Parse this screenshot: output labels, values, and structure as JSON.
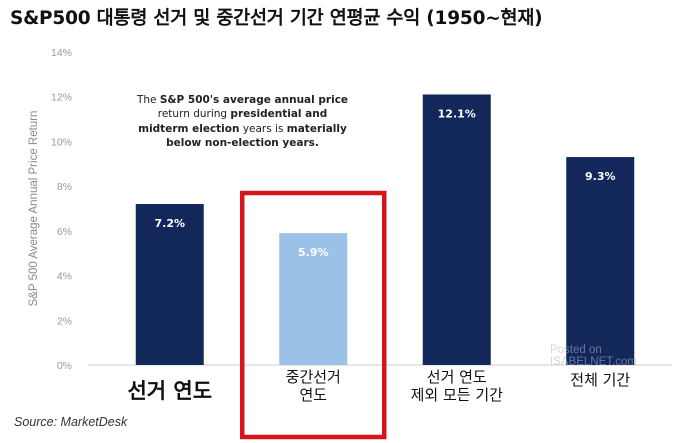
{
  "title": "S&P500 대통령 선거 및 중간선거 기간 연평균 수익 (1950~현재)",
  "annotation": {
    "part1": "The ",
    "part2": "S&P 500's average annual price",
    "part3": "return during ",
    "part4": "presidential and",
    "part5": "midterm election",
    "part6": " years is ",
    "part7": "materially",
    "part8": "below non-election years."
  },
  "source": "Source: MarketDesk",
  "watermark": {
    "line1": "Posted on",
    "line2": "ISABELNET.com"
  },
  "colors": {
    "dark_bar": "#13285a",
    "light_bar": "#9cc1e6",
    "highlight_box": "#d8141c"
  },
  "chart_data": {
    "type": "bar",
    "ylabel": "S&P 500 Average Annual Price Return",
    "ylim": [
      0,
      14
    ],
    "yticks": [
      "0%",
      "2%",
      "4%",
      "6%",
      "8%",
      "10%",
      "12%",
      "14%"
    ],
    "categories": [
      [
        "선거 연도"
      ],
      [
        "중간선거",
        "연도"
      ],
      [
        "선거 연도",
        "제외 모든 기간"
      ],
      [
        "전체 기간"
      ]
    ],
    "values": [
      7.2,
      5.9,
      12.1,
      9.3
    ],
    "value_labels": [
      "7.2%",
      "5.9%",
      "12.1%",
      "9.3%"
    ],
    "highlighted_category": "중간선거 연도",
    "grid": false
  }
}
